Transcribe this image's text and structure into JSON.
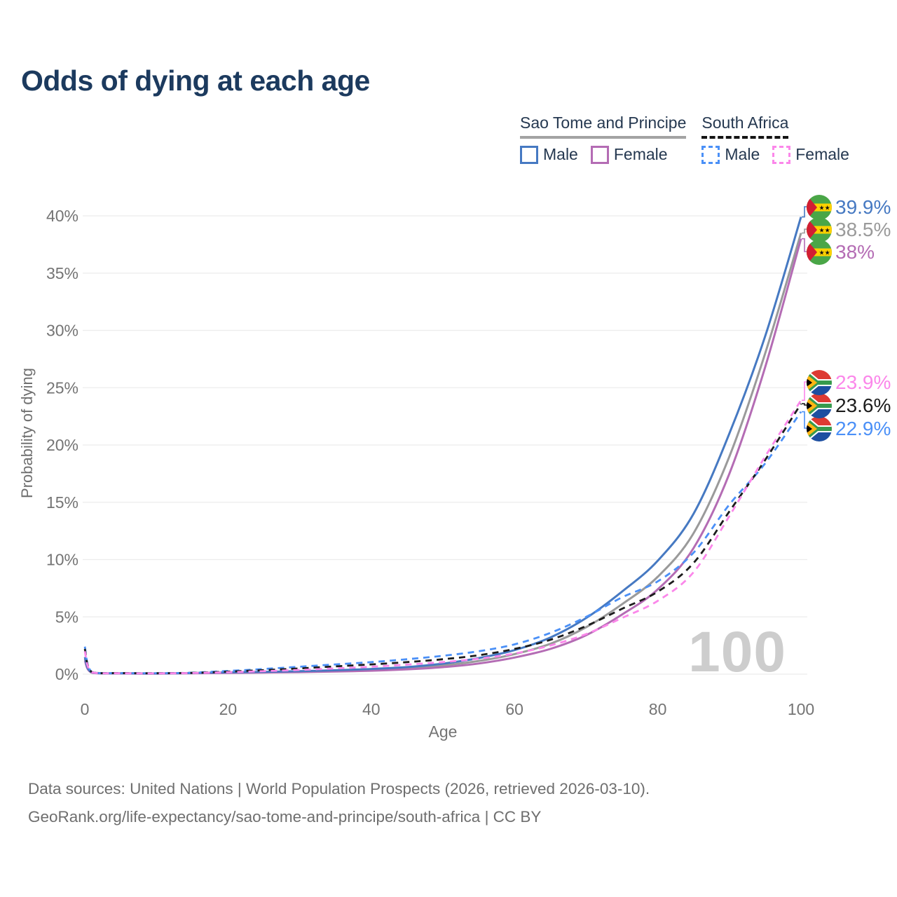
{
  "header": {
    "title": "Odds of dying at each age"
  },
  "legend": {
    "groups": [
      {
        "label": "Sao Tome and Principe",
        "line_style": "solid",
        "underline_color": "#a3a3a3",
        "items": [
          {
            "label": "Male",
            "color": "#4679c2",
            "dashed": false
          },
          {
            "label": "Female",
            "color": "#b46cb4",
            "dashed": false
          }
        ]
      },
      {
        "label": "South Africa",
        "line_style": "dashed",
        "underline_color": "#141414",
        "items": [
          {
            "label": "Male",
            "color": "#4b90f7",
            "dashed": true
          },
          {
            "label": "Female",
            "color": "#fb87ea",
            "dashed": true
          }
        ]
      }
    ]
  },
  "chart_data": {
    "type": "line",
    "title": "Odds of dying at each age",
    "xlabel": "Age",
    "ylabel": "Probability of dying",
    "x_ticks": [
      0,
      20,
      40,
      60,
      80,
      100
    ],
    "y_ticks": [
      0,
      5,
      10,
      15,
      20,
      25,
      30,
      35,
      40
    ],
    "y_unit": "%",
    "xlim": [
      0,
      100
    ],
    "ylim": [
      0,
      40
    ],
    "grid": "horizontal",
    "legend_position": "top-right",
    "watermark": "100",
    "x": [
      0,
      1,
      5,
      10,
      15,
      20,
      25,
      30,
      35,
      40,
      45,
      50,
      55,
      60,
      65,
      70,
      75,
      80,
      85,
      90,
      95,
      100
    ],
    "series": [
      {
        "id": "stp_male",
        "name": "Sao Tome and Principe — Male",
        "color": "#4679c2",
        "dashed": false,
        "flag": "st",
        "end_label": "39.9%",
        "values": [
          1.5,
          0.15,
          0.08,
          0.07,
          0.1,
          0.16,
          0.2,
          0.26,
          0.34,
          0.45,
          0.62,
          0.92,
          1.4,
          2.1,
          3.2,
          4.9,
          7.2,
          9.9,
          14.0,
          21.0,
          29.5,
          39.9
        ]
      },
      {
        "id": "stp_both",
        "name": "Sao Tome and Principe — Both sexes",
        "color": "#9a9a9a",
        "dashed": false,
        "flag": "st",
        "end_label": "38.5%",
        "values": [
          1.35,
          0.13,
          0.07,
          0.06,
          0.09,
          0.13,
          0.17,
          0.22,
          0.28,
          0.37,
          0.51,
          0.76,
          1.15,
          1.75,
          2.65,
          4.1,
          6.1,
          8.5,
          12.3,
          19.0,
          28.0,
          38.5
        ]
      },
      {
        "id": "stp_female",
        "name": "Sao Tome and Principe — Female",
        "color": "#b46cb4",
        "dashed": false,
        "flag": "st",
        "end_label": "38%",
        "values": [
          1.2,
          0.12,
          0.06,
          0.05,
          0.08,
          0.11,
          0.14,
          0.18,
          0.23,
          0.3,
          0.42,
          0.61,
          0.93,
          1.45,
          2.2,
          3.4,
          5.2,
          7.4,
          11.0,
          17.5,
          26.8,
          38.0
        ]
      },
      {
        "id": "za_male",
        "name": "South Africa — Male",
        "color": "#4b90f7",
        "dashed": true,
        "flag": "za",
        "end_label": "22.9%",
        "values": [
          2.4,
          0.18,
          0.09,
          0.08,
          0.13,
          0.28,
          0.45,
          0.65,
          0.85,
          1.05,
          1.3,
          1.6,
          2.0,
          2.6,
          3.6,
          5.0,
          6.7,
          8.1,
          10.6,
          14.8,
          18.4,
          22.9
        ]
      },
      {
        "id": "za_both",
        "name": "South Africa — Both sexes",
        "color": "#1c1c1c",
        "dashed": true,
        "flag": "za",
        "end_label": "23.6%",
        "values": [
          2.2,
          0.17,
          0.09,
          0.08,
          0.11,
          0.22,
          0.35,
          0.5,
          0.68,
          0.85,
          1.05,
          1.3,
          1.65,
          2.2,
          3.0,
          4.2,
          5.7,
          7.2,
          9.7,
          14.2,
          18.7,
          23.6
        ]
      },
      {
        "id": "za_female",
        "name": "South Africa — Female",
        "color": "#fb87ea",
        "dashed": true,
        "flag": "za",
        "end_label": "23.9%",
        "values": [
          2.0,
          0.16,
          0.08,
          0.07,
          0.1,
          0.17,
          0.26,
          0.37,
          0.5,
          0.65,
          0.83,
          1.05,
          1.35,
          1.8,
          2.5,
          3.5,
          4.9,
          6.4,
          8.9,
          13.8,
          19.0,
          23.9
        ]
      }
    ]
  },
  "footer": {
    "line1": "Data sources: United Nations | World Population Prospects (2026, retrieved 2026-03-10).",
    "line2": "GeoRank.org/life-expectancy/sao-tome-and-principe/south-africa | CC BY"
  }
}
